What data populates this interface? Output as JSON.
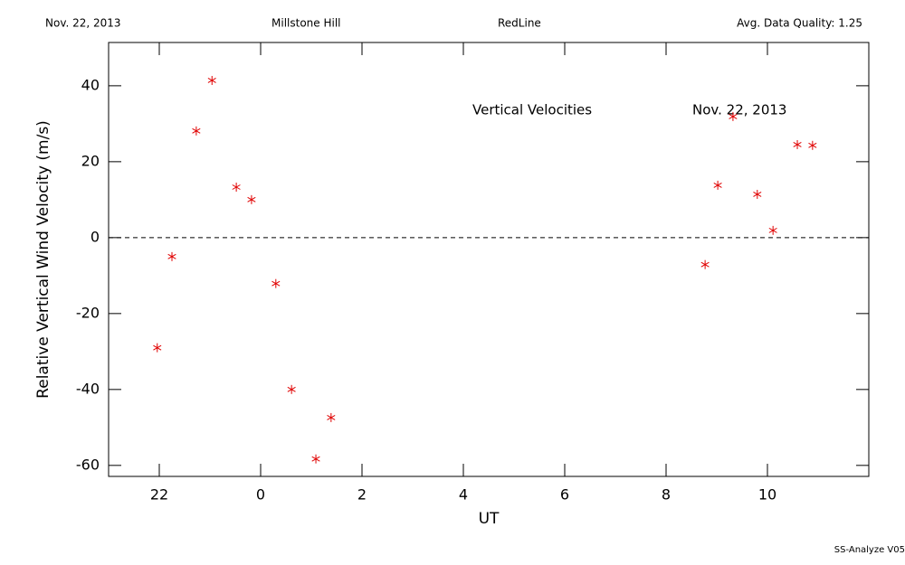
{
  "chart_data": {
    "type": "scatter",
    "header": [
      "Nov. 22, 2013",
      "Millstone Hill",
      "RedLine",
      "Avg. Data Quality: 1.25"
    ],
    "annotations": [
      "Vertical Velocities",
      "Nov. 22, 2013"
    ],
    "footer": "SS-Analyze V05",
    "x_label": "UT",
    "y_label": "Relative Vertical Wind Velocity (m/s)",
    "color": "#e00000",
    "hline": 0,
    "xlim": [
      21,
      36
    ],
    "ylim": [
      -62.9,
      51.4
    ],
    "xticks": [
      22,
      {
        "value": 24,
        "label": "0"
      },
      {
        "value": 26,
        "label": "2"
      },
      {
        "value": 28,
        "label": "4"
      },
      {
        "value": 30,
        "label": "6"
      },
      {
        "value": 32,
        "label": "8"
      },
      {
        "value": 34,
        "label": "10"
      }
    ],
    "yticks": [
      -60,
      -40,
      -20,
      0,
      20,
      40
    ],
    "x": [
      21.96,
      22.25,
      22.73,
      23.04,
      23.52,
      23.82,
      24.3,
      24.61,
      25.09,
      25.39,
      32.77,
      33.02,
      33.32,
      33.8,
      34.11,
      34.59,
      34.89
    ],
    "values": [
      -29.0,
      -5.0,
      28.1,
      41.4,
      13.3,
      10.0,
      -12.1,
      -40.0,
      -58.3,
      -47.4,
      -7.1,
      13.8,
      31.9,
      11.4,
      1.9,
      24.5,
      24.3
    ]
  }
}
